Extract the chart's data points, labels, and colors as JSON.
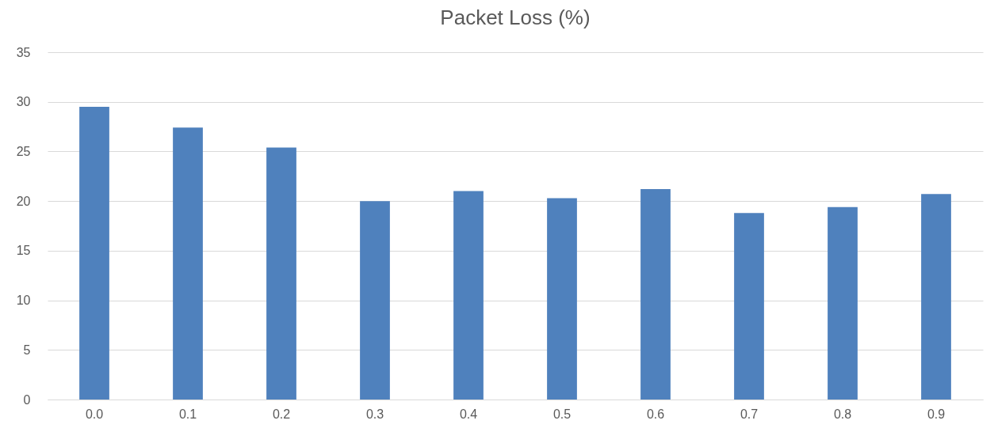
{
  "chart_data": {
    "type": "bar",
    "title": "Packet Loss (%)",
    "categories": [
      "0.0",
      "0.1",
      "0.2",
      "0.3",
      "0.4",
      "0.5",
      "0.6",
      "0.7",
      "0.8",
      "0.9"
    ],
    "values": [
      29.5,
      27.4,
      25.4,
      20.0,
      21.0,
      20.3,
      21.2,
      18.8,
      19.4,
      20.7
    ],
    "color": "#4f81bd",
    "ylim": [
      0,
      35
    ],
    "yticks": [
      0,
      5,
      10,
      15,
      20,
      25,
      30,
      35
    ],
    "grid": "y"
  }
}
